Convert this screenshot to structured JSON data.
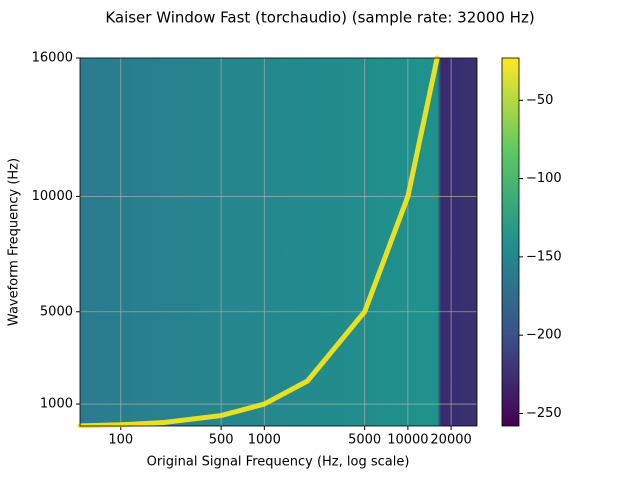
{
  "chart_data": {
    "type": "line",
    "title": "Kaiser Window Fast (torchaudio) (sample rate: 32000 Hz)",
    "xlabel": "Original Signal Frequency (Hz, log scale)",
    "ylabel": "Waveform Frequency (Hz)",
    "x": [
      52,
      100,
      200,
      500,
      1000,
      2000,
      5000,
      10000,
      16000
    ],
    "values": [
      52,
      100,
      200,
      500,
      1000,
      2000,
      5000,
      10000,
      16000
    ],
    "color": "#f2e51d",
    "xscale": "log",
    "xlim": [
      52,
      30300
    ],
    "xticks": [
      100,
      500,
      1000,
      5000,
      10000,
      20000
    ],
    "ylim": [
      48,
      16000
    ],
    "yticks": [
      1000,
      5000,
      10000,
      16000
    ],
    "clim": [
      -258,
      -23
    ],
    "cticks": [
      {
        "value": -50,
        "label": "−50"
      },
      {
        "value": -100,
        "label": "−100"
      },
      {
        "value": -150,
        "label": "−150"
      },
      {
        "value": -200,
        "label": "−200"
      },
      {
        "value": -250,
        "label": "−250"
      }
    ],
    "grid": true
  }
}
